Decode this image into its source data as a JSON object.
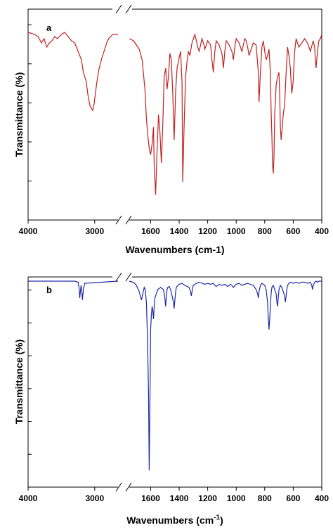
{
  "chart_data": [
    {
      "type": "line",
      "panel_label": "a",
      "xlabel": "Wavenumbers (cm-1)",
      "xlabel_super": "",
      "xlabel_end": "",
      "ylabel": "Transmittance (%)",
      "x_segments": [
        [
          4000,
          2650
        ],
        [
          1750,
          400
        ]
      ],
      "axis_break": true,
      "xticks": [
        4000,
        3000,
        1600,
        1400,
        1200,
        1000,
        800,
        600,
        400
      ],
      "color": "#c0211f",
      "ylim": [
        0,
        100
      ],
      "grid": false,
      "series": [
        {
          "x": [
            4000,
            3900,
            3850,
            3800,
            3760,
            3720,
            3680,
            3640,
            3600,
            3560,
            3500,
            3450,
            3400,
            3350,
            3300,
            3250,
            3200,
            3170,
            3130,
            3100,
            3070,
            3050,
            3030,
            3010,
            2990,
            2970,
            2940,
            2900,
            2870,
            2850,
            2820,
            2790,
            2760,
            2730,
            2700,
            2650,
            1750,
            1720,
            1700,
            1680,
            1660,
            1640,
            1630,
            1620,
            1610,
            1600,
            1590,
            1580,
            1575,
            1565,
            1555,
            1545,
            1535,
            1525,
            1515,
            1505,
            1495,
            1485,
            1475,
            1465,
            1455,
            1445,
            1435,
            1425,
            1415,
            1400,
            1390,
            1380,
            1375,
            1365,
            1355,
            1345,
            1335,
            1325,
            1310,
            1300,
            1290,
            1280,
            1270,
            1260,
            1250,
            1240,
            1230,
            1220,
            1200,
            1180,
            1170,
            1160,
            1150,
            1140,
            1120,
            1100,
            1090,
            1080,
            1070,
            1050,
            1030,
            1020,
            1010,
            1000,
            980,
            960,
            950,
            940,
            930,
            920,
            910,
            900,
            880,
            860,
            845,
            840,
            830,
            820,
            810,
            800,
            790,
            780,
            770,
            760,
            755,
            750,
            745,
            740,
            735,
            730,
            720,
            710,
            700,
            695,
            690,
            685,
            680,
            670,
            660,
            650,
            640,
            630,
            620,
            615,
            610,
            600,
            590,
            580,
            570,
            560,
            540,
            520,
            500,
            480,
            460,
            450,
            445,
            440,
            430,
            420,
            410,
            400
          ],
          "values": [
            89,
            88,
            87,
            84,
            86,
            82,
            84,
            85,
            87,
            86,
            88,
            89,
            87,
            85,
            84,
            80,
            76,
            70,
            66,
            59,
            54,
            53,
            52,
            55,
            60,
            65,
            71,
            76,
            79,
            81,
            84,
            86,
            87,
            88,
            88,
            88,
            86,
            85,
            83,
            81,
            76,
            62,
            48,
            40,
            34,
            31,
            36,
            44,
            26,
            12,
            33,
            50,
            42,
            27,
            45,
            68,
            72,
            62,
            68,
            79,
            76,
            60,
            38,
            61,
            72,
            77,
            80,
            65,
            18,
            45,
            68,
            75,
            80,
            78,
            84,
            86,
            88,
            85,
            82,
            80,
            83,
            86,
            84,
            81,
            85,
            83,
            76,
            70,
            80,
            85,
            83,
            79,
            72,
            80,
            85,
            83,
            80,
            76,
            82,
            86,
            84,
            80,
            83,
            86,
            85,
            82,
            78,
            80,
            84,
            83,
            70,
            56,
            70,
            82,
            85,
            80,
            76,
            78,
            81,
            70,
            52,
            40,
            26,
            22,
            30,
            50,
            64,
            68,
            70,
            60,
            44,
            38,
            42,
            50,
            55,
            70,
            82,
            78,
            72,
            65,
            60,
            66,
            80,
            86,
            84,
            82,
            84,
            86,
            84,
            80,
            85,
            82,
            76,
            72,
            80,
            85,
            86,
            88
          ]
        }
      ]
    },
    {
      "type": "line",
      "panel_label": "b",
      "xlabel": "Wavenumbers (cm",
      "xlabel_super": "-1",
      "xlabel_end": ")",
      "ylabel": "Transmittance (%)",
      "x_segments": [
        [
          4000,
          2650
        ],
        [
          1750,
          400
        ]
      ],
      "axis_break": true,
      "xticks": [
        4000,
        3000,
        1600,
        1400,
        1200,
        1000,
        800,
        600,
        400
      ],
      "color": "#1f2aa5",
      "ylim": [
        0,
        100
      ],
      "grid": false,
      "series": [
        {
          "x": [
            4000,
            3300,
            3250,
            3235,
            3225,
            3215,
            3205,
            3195,
            3185,
            3170,
            3150,
            2650,
            1750,
            1720,
            1700,
            1680,
            1665,
            1655,
            1645,
            1638,
            1630,
            1622,
            1615,
            1610,
            1605,
            1600,
            1595,
            1590,
            1585,
            1580,
            1575,
            1570,
            1565,
            1560,
            1550,
            1530,
            1510,
            1500,
            1495,
            1490,
            1485,
            1480,
            1470,
            1460,
            1450,
            1440,
            1435,
            1430,
            1425,
            1420,
            1410,
            1400,
            1380,
            1360,
            1330,
            1320,
            1315,
            1310,
            1305,
            1300,
            1280,
            1260,
            1240,
            1220,
            1200,
            1180,
            1160,
            1150,
            1140,
            1120,
            1100,
            1080,
            1060,
            1040,
            1030,
            1020,
            1000,
            980,
            960,
            940,
            920,
            900,
            880,
            860,
            850,
            845,
            840,
            830,
            820,
            800,
            790,
            780,
            775,
            770,
            765,
            760,
            755,
            750,
            740,
            730,
            720,
            715,
            710,
            705,
            700,
            690,
            680,
            670,
            660,
            655,
            650,
            645,
            640,
            630,
            620,
            600,
            580,
            560,
            540,
            520,
            500,
            480,
            470,
            465,
            460,
            450,
            440,
            430,
            420,
            410,
            400
          ],
          "values": [
            98,
            98,
            97.5,
            95,
            90,
            93,
            96,
            94,
            89,
            94,
            97,
            98,
            98,
            97.5,
            96,
            93,
            89,
            92,
            95,
            94,
            88,
            70,
            45,
            8,
            40,
            75,
            82,
            86,
            84,
            80,
            86,
            90,
            91,
            92,
            94,
            95,
            94,
            90,
            86,
            91,
            94,
            95,
            95.5,
            94,
            91,
            88,
            85,
            89,
            93,
            95,
            96,
            96.5,
            97,
            96,
            95,
            93,
            91,
            93,
            95,
            96,
            97,
            97.5,
            97,
            96.5,
            97,
            96.5,
            97,
            96,
            95.5,
            96.5,
            96,
            96.5,
            95.5,
            96.5,
            96,
            95,
            96.5,
            97,
            96,
            96.5,
            97,
            96.5,
            96,
            94,
            92,
            90,
            93,
            96,
            97,
            96,
            94,
            88,
            80,
            75,
            80,
            86,
            92,
            95,
            96,
            94,
            92,
            88,
            86,
            90,
            94,
            96,
            95,
            93,
            91,
            88,
            91,
            94,
            96,
            97,
            97.5,
            97,
            97.5,
            97,
            97.5,
            97.5,
            97,
            97.5,
            96,
            94,
            96,
            97.5,
            98,
            97.5,
            98,
            98,
            98
          ]
        }
      ]
    }
  ]
}
